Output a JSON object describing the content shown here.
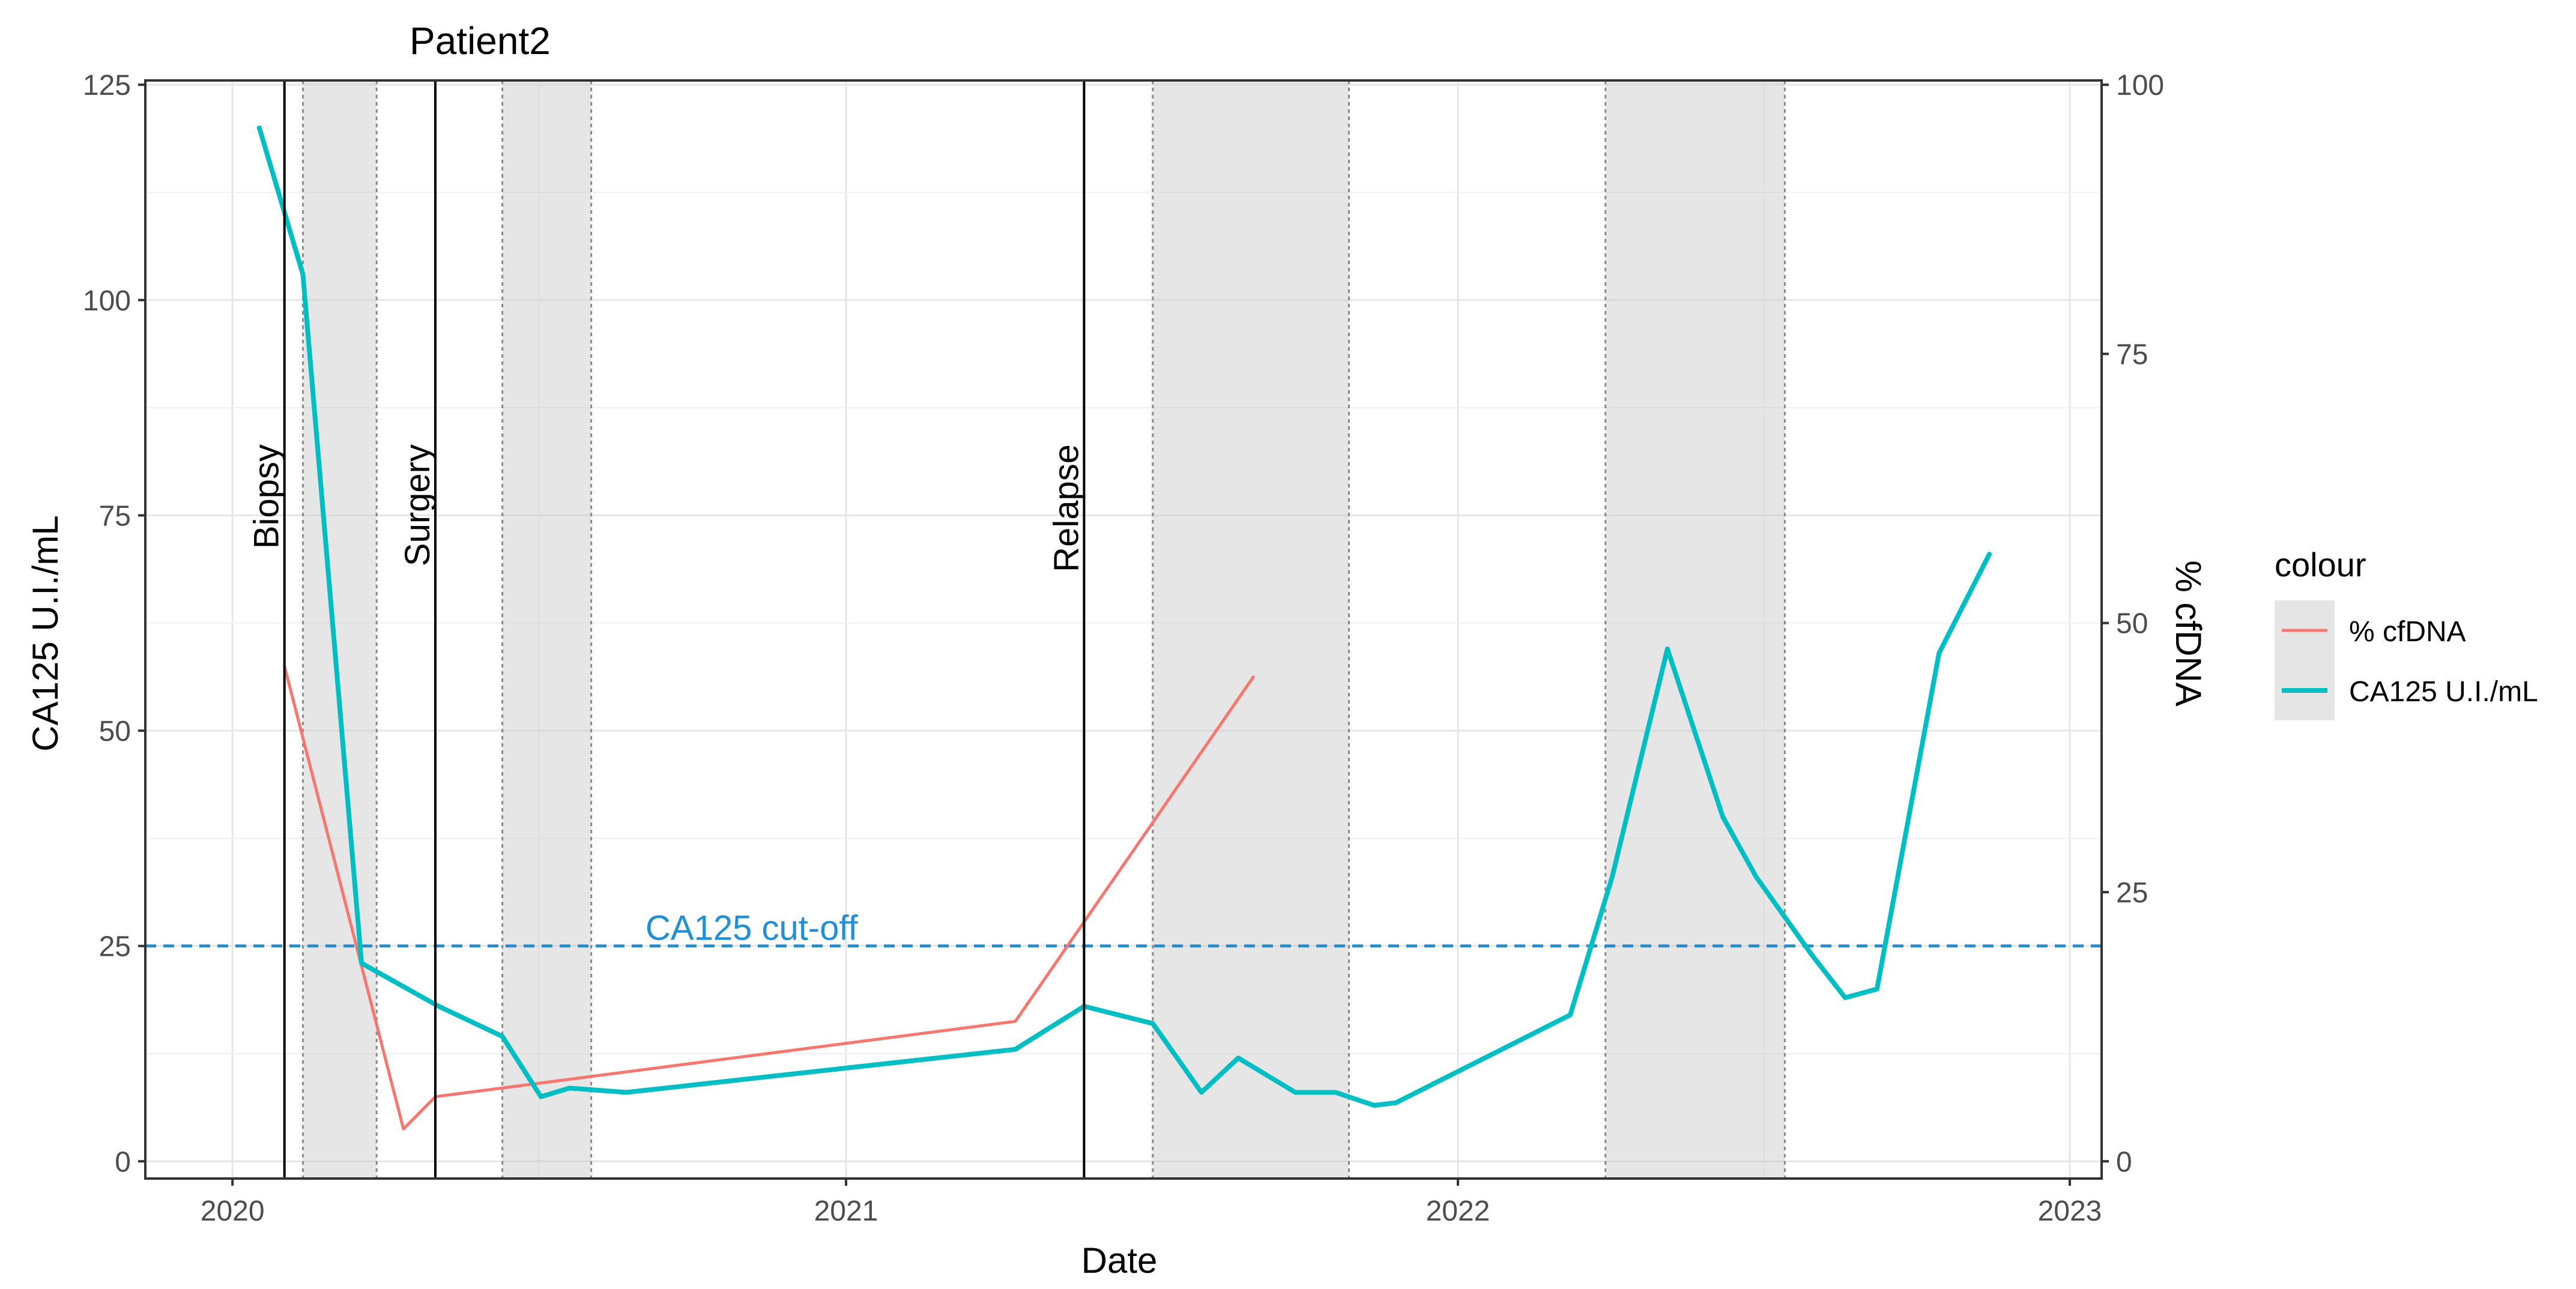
{
  "chart_data": {
    "type": "line",
    "title": "Patient2",
    "xlabel": "Date",
    "ylabel_left": "CA125 U.I./mL",
    "ylabel_right": "% cfDNA",
    "xlim": [
      "2019-11-10",
      "2023-01-20"
    ],
    "ylim_left": [
      -2,
      125.5
    ],
    "ylim_right": [
      -1.6,
      100.4
    ],
    "x_ticks": [
      {
        "date": "2020-01-01",
        "label": "2020"
      },
      {
        "date": "2021-01-01",
        "label": "2021"
      },
      {
        "date": "2022-01-01",
        "label": "2022"
      },
      {
        "date": "2023-01-01",
        "label": "2023"
      }
    ],
    "y_ticks_left": [
      0,
      25,
      50,
      75,
      100,
      125
    ],
    "y_ticks_right": [
      0,
      25,
      50,
      75,
      100
    ],
    "grid": true,
    "legend": {
      "title": "colour",
      "position": "right",
      "entries": [
        {
          "label": "% cfDNA",
          "color": "#F8766D"
        },
        {
          "label": "CA125 U.I./mL",
          "color": "#00BFC4"
        }
      ]
    },
    "shaded_periods": [
      {
        "start": "2020-02-12",
        "end": "2020-03-27"
      },
      {
        "start": "2020-06-10",
        "end": "2020-08-02"
      },
      {
        "start": "2021-07-03",
        "end": "2021-10-28"
      },
      {
        "start": "2022-03-30",
        "end": "2022-07-15"
      }
    ],
    "events": [
      {
        "date": "2020-02-01",
        "label": "Biopsy"
      },
      {
        "date": "2020-05-01",
        "label": "Surgery"
      },
      {
        "date": "2021-05-23",
        "label": "Relapse"
      }
    ],
    "reference_line": {
      "axis": "left",
      "value": 25,
      "label": "CA125 cut-off",
      "color": "#1F8FD8"
    },
    "series": [
      {
        "name": "% cfDNA",
        "axis": "right",
        "color": "#F8766D",
        "points": [
          {
            "x": "2020-02-01",
            "y": 46
          },
          {
            "x": "2020-04-12",
            "y": 3
          },
          {
            "x": "2020-05-01",
            "y": 6
          },
          {
            "x": "2021-04-12",
            "y": 13
          },
          {
            "x": "2021-09-01",
            "y": 45
          }
        ]
      },
      {
        "name": "CA125 U.I./mL",
        "axis": "left",
        "color": "#00BFC4",
        "points": [
          {
            "x": "2020-01-17",
            "y": 120
          },
          {
            "x": "2020-02-12",
            "y": 103
          },
          {
            "x": "2020-03-18",
            "y": 23
          },
          {
            "x": "2020-05-03",
            "y": 18
          },
          {
            "x": "2020-06-10",
            "y": 14.5
          },
          {
            "x": "2020-07-03",
            "y": 7.5
          },
          {
            "x": "2020-07-20",
            "y": 8.5
          },
          {
            "x": "2020-08-23",
            "y": 8
          },
          {
            "x": "2021-04-12",
            "y": 13
          },
          {
            "x": "2021-05-23",
            "y": 18
          },
          {
            "x": "2021-07-03",
            "y": 16
          },
          {
            "x": "2021-08-01",
            "y": 8
          },
          {
            "x": "2021-08-23",
            "y": 12
          },
          {
            "x": "2021-09-26",
            "y": 8
          },
          {
            "x": "2021-10-20",
            "y": 8
          },
          {
            "x": "2021-11-12",
            "y": 6.5
          },
          {
            "x": "2021-11-25",
            "y": 6.8
          },
          {
            "x": "2022-03-09",
            "y": 17
          },
          {
            "x": "2022-04-03",
            "y": 33
          },
          {
            "x": "2022-05-06",
            "y": 59.5
          },
          {
            "x": "2022-06-08",
            "y": 40
          },
          {
            "x": "2022-06-28",
            "y": 33
          },
          {
            "x": "2022-07-31",
            "y": 24
          },
          {
            "x": "2022-08-20",
            "y": 19
          },
          {
            "x": "2022-09-08",
            "y": 20
          },
          {
            "x": "2022-10-15",
            "y": 59
          },
          {
            "x": "2022-11-14",
            "y": 70.5
          }
        ]
      }
    ]
  }
}
